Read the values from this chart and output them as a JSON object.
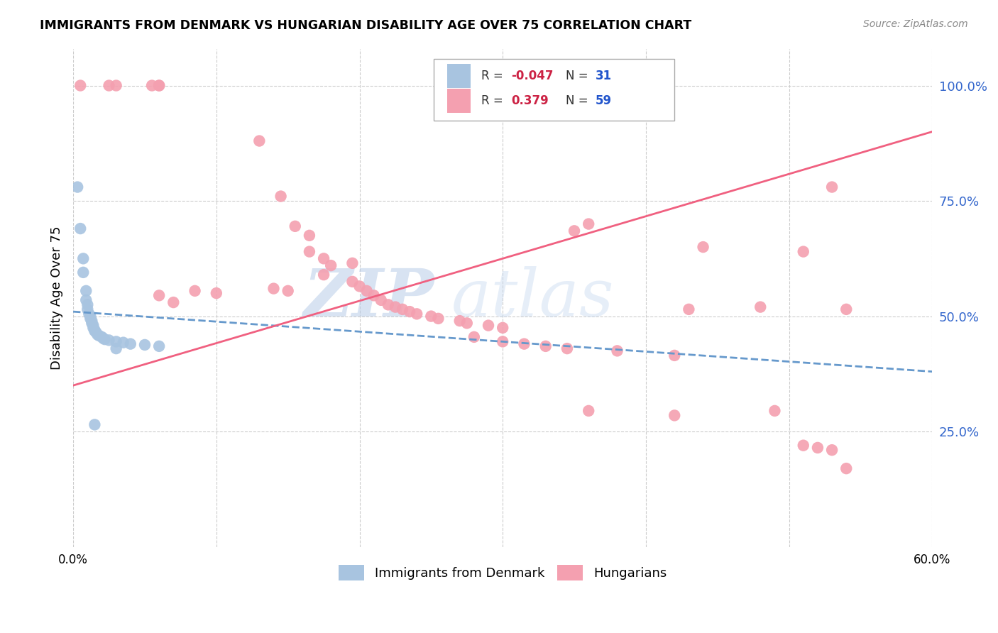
{
  "title": "IMMIGRANTS FROM DENMARK VS HUNGARIAN DISABILITY AGE OVER 75 CORRELATION CHART",
  "source": "Source: ZipAtlas.com",
  "ylabel": "Disability Age Over 75",
  "xlim": [
    0.0,
    0.6
  ],
  "ylim": [
    0.0,
    1.08
  ],
  "yticks": [
    0.25,
    0.5,
    0.75,
    1.0
  ],
  "ytick_labels": [
    "25.0%",
    "50.0%",
    "75.0%",
    "100.0%"
  ],
  "xticks": [
    0.0,
    0.1,
    0.2,
    0.3,
    0.4,
    0.5,
    0.6
  ],
  "xtick_labels": [
    "0.0%",
    "",
    "",
    "",
    "",
    "",
    "60.0%"
  ],
  "denmark_color": "#a8c4e0",
  "hungarian_color": "#f4a0b0",
  "denmark_line_color": "#6699cc",
  "hungarian_line_color": "#f06080",
  "watermark_zip": "ZIP",
  "watermark_atlas": "atlas",
  "denmark_points": [
    [
      0.003,
      0.78
    ],
    [
      0.005,
      0.69
    ],
    [
      0.007,
      0.625
    ],
    [
      0.007,
      0.595
    ],
    [
      0.009,
      0.555
    ],
    [
      0.009,
      0.535
    ],
    [
      0.01,
      0.525
    ],
    [
      0.01,
      0.515
    ],
    [
      0.011,
      0.505
    ],
    [
      0.012,
      0.5
    ],
    [
      0.012,
      0.495
    ],
    [
      0.013,
      0.49
    ],
    [
      0.013,
      0.485
    ],
    [
      0.014,
      0.48
    ],
    [
      0.014,
      0.475
    ],
    [
      0.015,
      0.47
    ],
    [
      0.015,
      0.468
    ],
    [
      0.016,
      0.465
    ],
    [
      0.017,
      0.46
    ],
    [
      0.018,
      0.458
    ],
    [
      0.02,
      0.455
    ],
    [
      0.021,
      0.452
    ],
    [
      0.022,
      0.45
    ],
    [
      0.025,
      0.448
    ],
    [
      0.03,
      0.445
    ],
    [
      0.035,
      0.443
    ],
    [
      0.04,
      0.44
    ],
    [
      0.05,
      0.438
    ],
    [
      0.06,
      0.435
    ],
    [
      0.015,
      0.265
    ],
    [
      0.03,
      0.43
    ]
  ],
  "hungarian_points": [
    [
      0.005,
      1.0
    ],
    [
      0.025,
      1.0
    ],
    [
      0.03,
      1.0
    ],
    [
      0.055,
      1.0
    ],
    [
      0.06,
      1.0
    ],
    [
      0.06,
      1.0
    ],
    [
      0.13,
      0.88
    ],
    [
      0.145,
      0.76
    ],
    [
      0.155,
      0.695
    ],
    [
      0.165,
      0.675
    ],
    [
      0.165,
      0.64
    ],
    [
      0.175,
      0.625
    ],
    [
      0.18,
      0.61
    ],
    [
      0.175,
      0.59
    ],
    [
      0.195,
      0.575
    ],
    [
      0.2,
      0.565
    ],
    [
      0.205,
      0.555
    ],
    [
      0.21,
      0.545
    ],
    [
      0.215,
      0.535
    ],
    [
      0.22,
      0.525
    ],
    [
      0.225,
      0.52
    ],
    [
      0.23,
      0.515
    ],
    [
      0.235,
      0.51
    ],
    [
      0.24,
      0.505
    ],
    [
      0.25,
      0.5
    ],
    [
      0.255,
      0.495
    ],
    [
      0.27,
      0.49
    ],
    [
      0.275,
      0.485
    ],
    [
      0.29,
      0.48
    ],
    [
      0.3,
      0.475
    ],
    [
      0.28,
      0.455
    ],
    [
      0.3,
      0.445
    ],
    [
      0.315,
      0.44
    ],
    [
      0.33,
      0.435
    ],
    [
      0.345,
      0.43
    ],
    [
      0.06,
      0.545
    ],
    [
      0.07,
      0.53
    ],
    [
      0.085,
      0.555
    ],
    [
      0.1,
      0.55
    ],
    [
      0.14,
      0.56
    ],
    [
      0.15,
      0.555
    ],
    [
      0.195,
      0.615
    ],
    [
      0.35,
      0.685
    ],
    [
      0.36,
      0.7
    ],
    [
      0.38,
      0.425
    ],
    [
      0.42,
      0.415
    ],
    [
      0.36,
      0.295
    ],
    [
      0.42,
      0.285
    ],
    [
      0.43,
      0.515
    ],
    [
      0.48,
      0.52
    ],
    [
      0.49,
      0.295
    ],
    [
      0.51,
      0.22
    ],
    [
      0.52,
      0.215
    ],
    [
      0.53,
      0.21
    ],
    [
      0.54,
      0.17
    ],
    [
      0.44,
      0.65
    ],
    [
      0.51,
      0.64
    ],
    [
      0.53,
      0.78
    ],
    [
      0.54,
      0.515
    ]
  ],
  "dk_line_x": [
    0.0,
    0.6
  ],
  "dk_line_y": [
    0.51,
    0.38
  ],
  "hu_line_x": [
    0.0,
    0.6
  ],
  "hu_line_y": [
    0.35,
    0.9
  ]
}
